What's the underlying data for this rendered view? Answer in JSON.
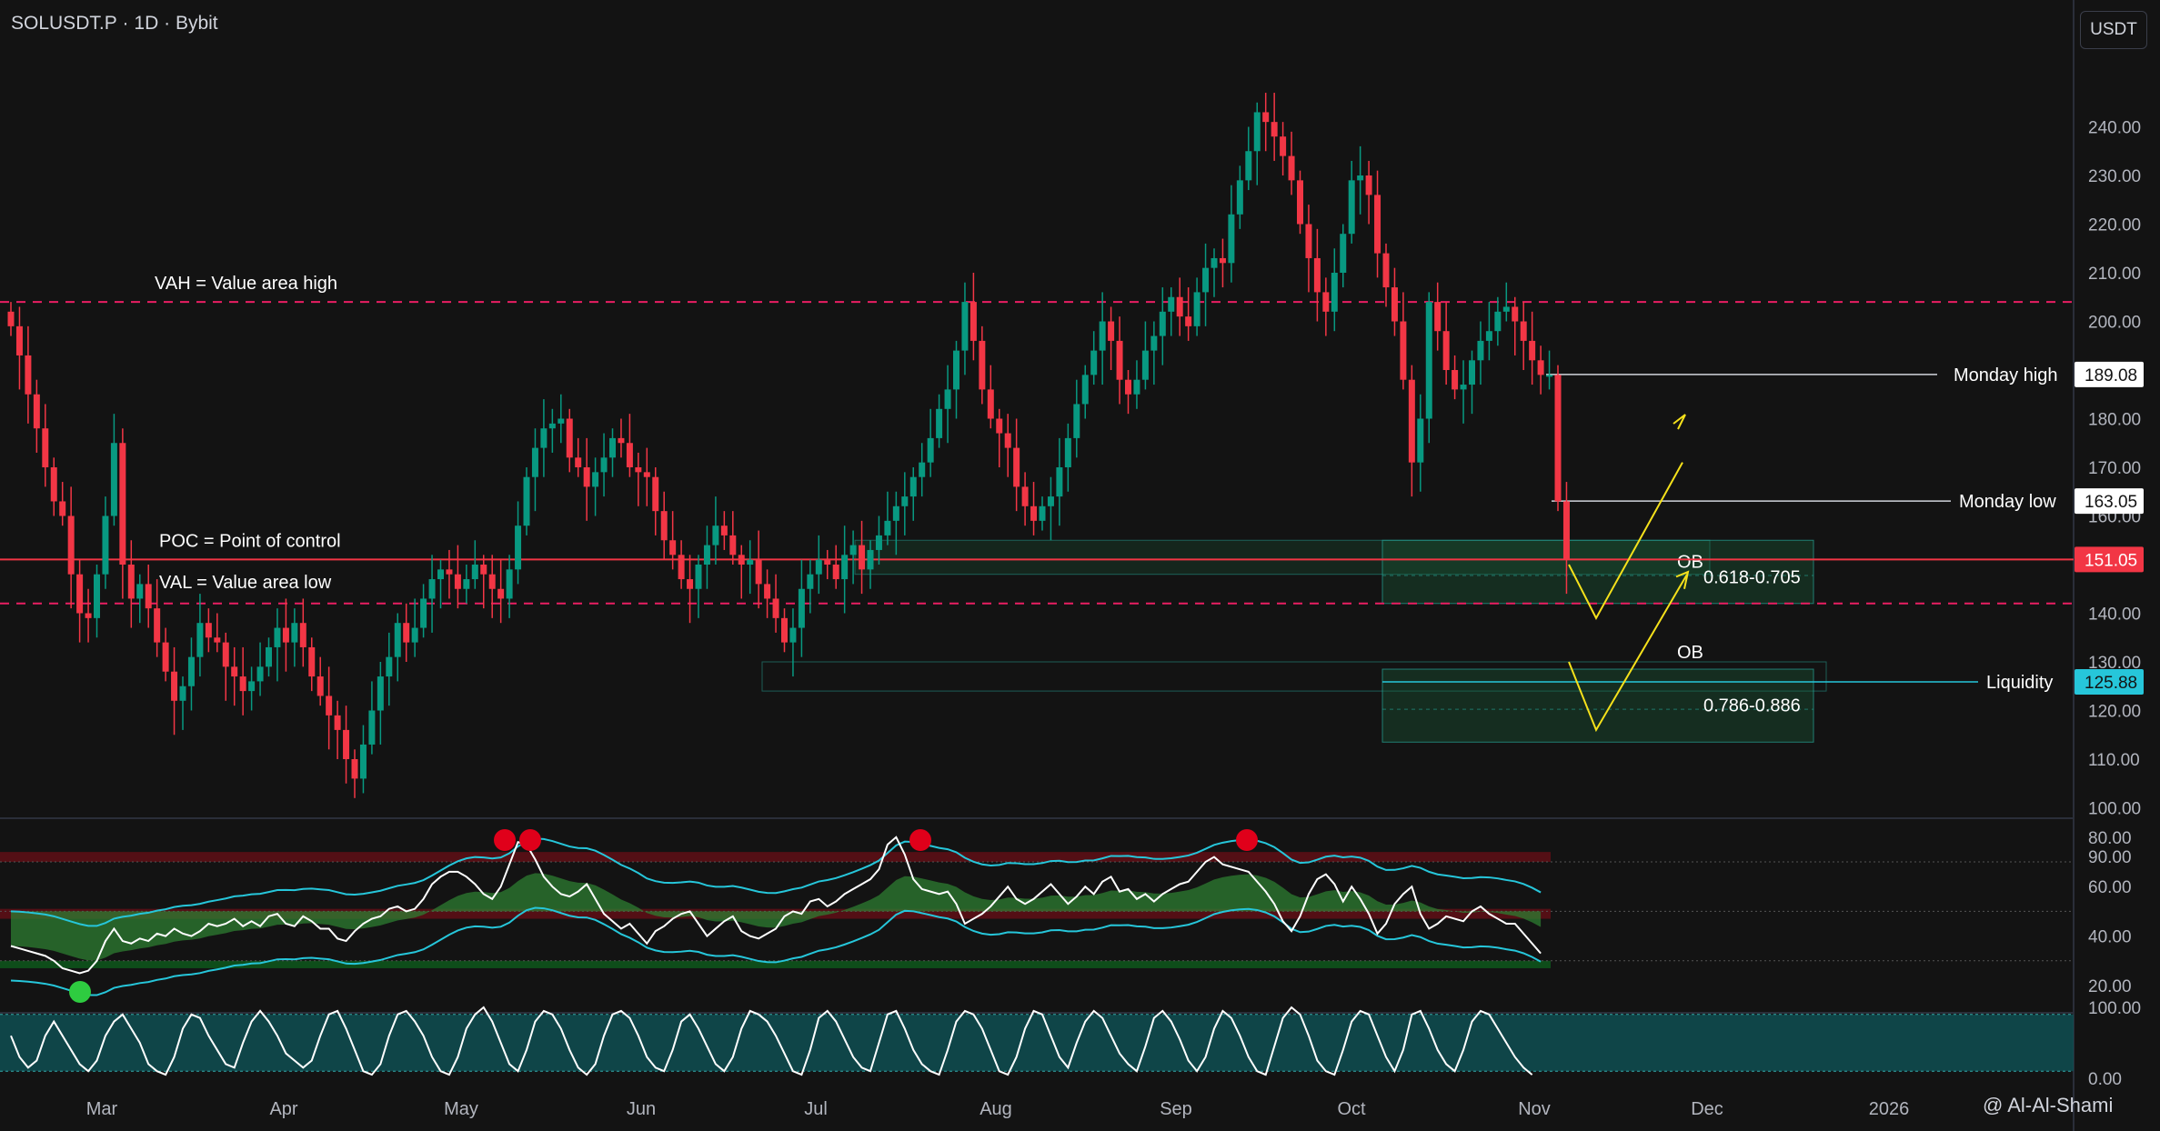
{
  "header": {
    "symbol": "SOLUSDT.P",
    "timeframe": "1D",
    "exchange": "Bybit",
    "separator": "·"
  },
  "currency_button": "USDT",
  "watermark": "@ Al-Al-Shami",
  "colors": {
    "background": "#131313",
    "up_candle": "#089981",
    "down_candle": "#f23645",
    "poc_line": "#f23645",
    "value_area_dash": "#e91e63",
    "zone_fill": "#1b5e3a",
    "zone_border": "#26a69a",
    "arrow": "#f5e11b",
    "liquidity_label": "#26c6da",
    "rsi_line": "#ffffff",
    "band_line": "#26c6da"
  },
  "chart_data": {
    "type": "candlestick",
    "symbol": "SOLUSDT.P",
    "ylim": [
      87,
      268
    ],
    "y_ticks": [
      "90.00",
      "100.00",
      "110.00",
      "120.00",
      "130.00",
      "140.00",
      "150.00",
      "160.00",
      "170.00",
      "180.00",
      "190.00",
      "200.00",
      "210.00",
      "220.00",
      "230.00",
      "240.00"
    ],
    "x_ticks": [
      "Mar",
      "Apr",
      "May",
      "Jun",
      "Jul",
      "Aug",
      "Sep",
      "Oct",
      "Nov",
      "Dec",
      "2026"
    ],
    "closes": [
      199,
      193,
      185,
      178,
      170,
      163,
      160,
      148,
      140,
      139,
      148,
      160,
      175,
      150,
      143,
      146,
      141,
      134,
      128,
      122,
      125,
      131,
      138,
      135,
      134,
      129,
      127,
      124,
      126,
      129,
      133,
      137,
      134,
      138,
      133,
      127,
      123,
      119,
      116,
      110,
      106,
      113,
      120,
      127,
      131,
      138,
      134,
      137,
      143,
      147,
      149,
      148,
      145,
      147,
      150,
      148,
      145,
      143,
      149,
      158,
      168,
      174,
      178,
      179,
      180,
      172,
      170,
      166,
      169,
      172,
      176,
      175,
      170,
      169,
      168,
      161,
      155,
      152,
      147,
      145,
      150,
      154,
      158,
      156,
      152,
      150,
      151,
      146,
      143,
      139,
      134,
      137,
      145,
      148,
      151,
      150,
      147,
      152,
      154,
      149,
      153,
      156,
      159,
      162,
      164,
      168,
      171,
      176,
      182,
      186,
      194,
      204,
      196,
      186,
      180,
      177,
      174,
      166,
      162,
      159,
      162,
      164,
      170,
      176,
      183,
      189,
      194,
      200,
      196,
      188,
      185,
      188,
      194,
      197,
      202,
      205,
      201,
      199,
      206,
      211,
      213,
      212,
      222,
      229,
      235,
      243,
      241,
      238,
      234,
      229,
      220,
      213,
      206,
      202,
      210,
      218,
      229,
      230,
      226,
      214,
      207,
      200,
      188,
      171,
      180,
      204,
      198,
      190,
      186,
      187,
      192,
      196,
      198,
      202,
      203,
      200,
      196,
      192,
      189,
      189,
      163,
      151
    ],
    "levels": [
      {
        "name": "Monday high",
        "value": 189.08,
        "label": "189.08"
      },
      {
        "name": "Monday low",
        "value": 163.05,
        "label": "163.05"
      },
      {
        "name": "POC",
        "value": 151.05,
        "label": "151.05"
      },
      {
        "name": "Liquidity",
        "value": 125.88,
        "label": "125.88"
      }
    ],
    "vah": 204,
    "val": 142,
    "annotations": {
      "vah": "VAH = Value area high",
      "poc": "POC = Point of control",
      "val": "VAL = Value area low",
      "monday_high": "Monday high",
      "monday_low": "Monday low",
      "liquidity": "Liquidity"
    },
    "zones": [
      {
        "label": "OB",
        "fib": "0.618-0.705",
        "low": 142,
        "high": 155
      },
      {
        "label": "OB",
        "fib": "0.786-0.886",
        "low": 113.5,
        "high": 128.5
      }
    ],
    "rsi_panel": {
      "ylim": [
        15,
        85
      ],
      "y_ticks": [
        "80.00",
        "60.00",
        "40.00",
        "20.00"
      ],
      "levels": [
        70,
        50,
        30
      ],
      "values": [
        36,
        35,
        34,
        33,
        32,
        30,
        27,
        26,
        25,
        26,
        30,
        38,
        43,
        38,
        37,
        39,
        38,
        41,
        40,
        43,
        41,
        40,
        42,
        45,
        44,
        45,
        47,
        44,
        46,
        44,
        48,
        49,
        45,
        44,
        48,
        46,
        43,
        43,
        39,
        38,
        42,
        45,
        47,
        48,
        51,
        52,
        50,
        51,
        55,
        61,
        64,
        66,
        66,
        64,
        61,
        57,
        55,
        60,
        69,
        78,
        77,
        71,
        64,
        60,
        57,
        56,
        58,
        61,
        55,
        49,
        46,
        43,
        45,
        41,
        37,
        42,
        44,
        47,
        49,
        50,
        45,
        40,
        43,
        46,
        48,
        42,
        40,
        39,
        41,
        43,
        48,
        50,
        49,
        54,
        55,
        52,
        54,
        57,
        59,
        61,
        63,
        67,
        77,
        80,
        73,
        63,
        59,
        58,
        57,
        58,
        53,
        45,
        47,
        49,
        52,
        56,
        60,
        55,
        53,
        55,
        58,
        61,
        57,
        53,
        56,
        60,
        57,
        62,
        64,
        58,
        59,
        55,
        57,
        54,
        57,
        59,
        61,
        62,
        66,
        70,
        72,
        69,
        68,
        67,
        66,
        62,
        58,
        53,
        46,
        42,
        48,
        57,
        63,
        65,
        61,
        54,
        60,
        55,
        49,
        41,
        45,
        53,
        57,
        60,
        49,
        43,
        45,
        48,
        47,
        46,
        50,
        52,
        49,
        47,
        45,
        45,
        41,
        37,
        33
      ]
    },
    "stoch_panel": {
      "ylim": [
        -5,
        110
      ],
      "y_ticks": [
        "100.00",
        "0.00"
      ],
      "values": [
        60,
        30,
        15,
        25,
        60,
        80,
        60,
        40,
        20,
        10,
        25,
        60,
        80,
        90,
        70,
        50,
        20,
        10,
        5,
        30,
        70,
        90,
        85,
        60,
        40,
        20,
        15,
        50,
        80,
        95,
        80,
        60,
        35,
        25,
        15,
        25,
        60,
        90,
        95,
        70,
        40,
        10,
        5,
        20,
        60,
        90,
        95,
        80,
        60,
        30,
        10,
        5,
        30,
        70,
        90,
        100,
        80,
        50,
        20,
        10,
        40,
        80,
        95,
        90,
        70,
        40,
        15,
        5,
        20,
        60,
        90,
        95,
        85,
        60,
        30,
        15,
        10,
        40,
        80,
        90,
        70,
        45,
        20,
        10,
        30,
        70,
        95,
        90,
        80,
        60,
        35,
        10,
        5,
        40,
        85,
        95,
        80,
        55,
        30,
        15,
        10,
        50,
        90,
        95,
        70,
        40,
        20,
        10,
        5,
        40,
        80,
        95,
        90,
        70,
        40,
        10,
        5,
        30,
        70,
        95,
        90,
        60,
        30,
        15,
        50,
        80,
        95,
        85,
        60,
        35,
        20,
        10,
        45,
        85,
        95,
        80,
        55,
        25,
        10,
        30,
        70,
        95,
        85,
        60,
        30,
        10,
        5,
        45,
        85,
        100,
        90,
        60,
        25,
        10,
        5,
        40,
        80,
        95,
        90,
        60,
        30,
        10,
        40,
        90,
        95,
        70,
        40,
        20,
        10,
        40,
        80,
        95,
        90,
        70,
        50,
        30,
        15,
        5
      ]
    }
  }
}
